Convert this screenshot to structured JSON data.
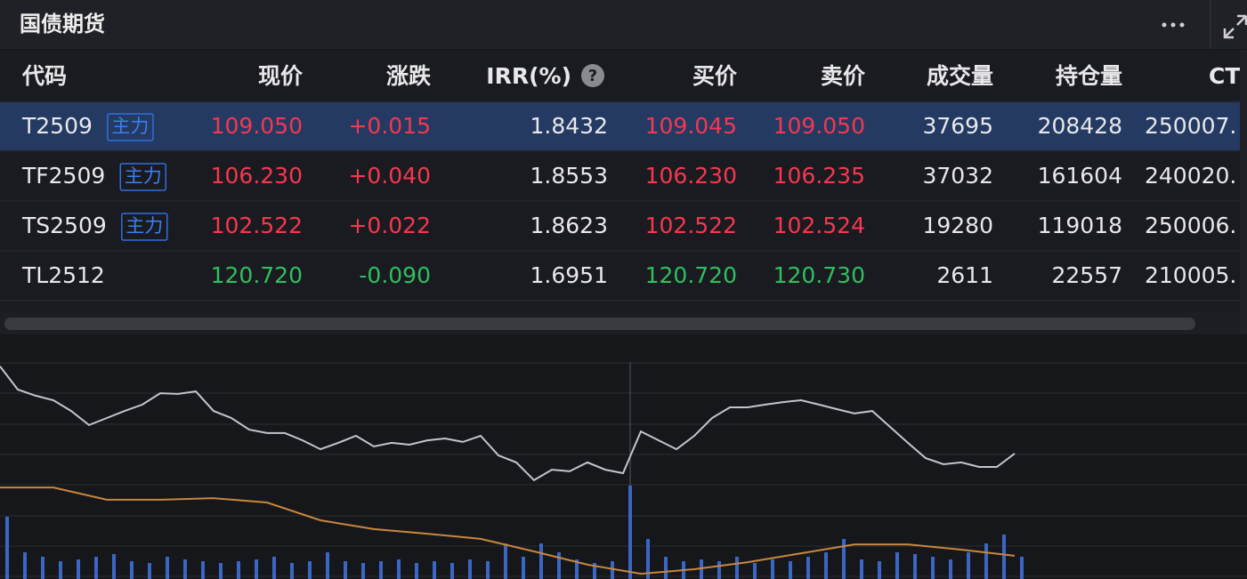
{
  "header": {
    "title": "国债期货"
  },
  "table": {
    "columns": [
      "代码",
      "现价",
      "涨跌",
      "IRR(%)",
      "买价",
      "卖价",
      "成交量",
      "持仓量",
      "CT"
    ],
    "selected_row": 0,
    "rows": [
      {
        "cells": [
          "T2509",
          "109.050",
          "+0.015",
          "1.8432",
          "109.045",
          "109.050",
          "37695",
          "208428",
          "250007."
        ],
        "tag": "主力",
        "color": "#f5374f"
      },
      {
        "cells": [
          "TF2509",
          "106.230",
          "+0.040",
          "1.8553",
          "106.230",
          "106.235",
          "37032",
          "161604",
          "240020."
        ],
        "tag": "主力",
        "color": "#f5374f"
      },
      {
        "cells": [
          "TS2509",
          "102.522",
          "+0.022",
          "1.8623",
          "102.522",
          "102.524",
          "19280",
          "119018",
          "250006."
        ],
        "tag": "主力",
        "color": "#f5374f"
      },
      {
        "cells": [
          "TL2512",
          "120.720",
          "-0.090",
          "1.6951",
          "120.720",
          "120.730",
          "2611",
          "22557",
          "210005."
        ],
        "color": "#2fbf5f"
      }
    ]
  },
  "chart": {
    "type": "line",
    "ylim": [
      0,
      100
    ],
    "volume_lim": [
      0,
      256
    ],
    "series": [
      {
        "color": "#c4c5cc",
        "values": [
          93.4,
          83.2,
          80.5,
          78.5,
          73.8,
          67.6,
          70.7,
          73.8,
          76.6,
          81.6,
          81.3,
          82.4,
          73.8,
          70.7,
          65.6,
          64.1,
          64.1,
          60.9,
          57.0,
          59.8,
          62.9,
          58.2,
          59.8,
          59.0,
          60.9,
          61.7,
          60.2,
          62.9,
          54.3,
          51.2,
          43.4,
          48.0,
          47.3,
          51.2,
          48.0,
          46.5,
          64.8,
          60.9,
          57.0,
          62.9,
          70.7,
          75.4,
          75.4,
          76.6,
          77.7,
          78.5,
          76.6,
          74.6,
          72.7,
          73.8,
          66.8,
          59.8,
          53.1,
          50.4,
          51.2,
          49.2,
          49.2,
          55.1
        ]
      },
      {
        "color": "#c8873c",
        "values": [
          40.2,
          40.2,
          34.8,
          34.8,
          35.5,
          33.6,
          25.8,
          21.9,
          19.9,
          17.6,
          12.1,
          6.3,
          2.3,
          4.3,
          7.4,
          11.3,
          15.2,
          15.2,
          12.9,
          10.2
        ]
      }
    ],
    "volume": {
      "color": "#3a66c4",
      "values": [
        70,
        30,
        25,
        20,
        22,
        25,
        28,
        20,
        18,
        25,
        22,
        20,
        18,
        20,
        22,
        25,
        18,
        20,
        30,
        20,
        18,
        20,
        22,
        18,
        20,
        18,
        22,
        20,
        40,
        25,
        40,
        30,
        22,
        18,
        20,
        105,
        45,
        25,
        20,
        22,
        20,
        25,
        18,
        22,
        20,
        25,
        30,
        45,
        22,
        20,
        30,
        28,
        25,
        22,
        30,
        40,
        50,
        25
      ]
    }
  }
}
